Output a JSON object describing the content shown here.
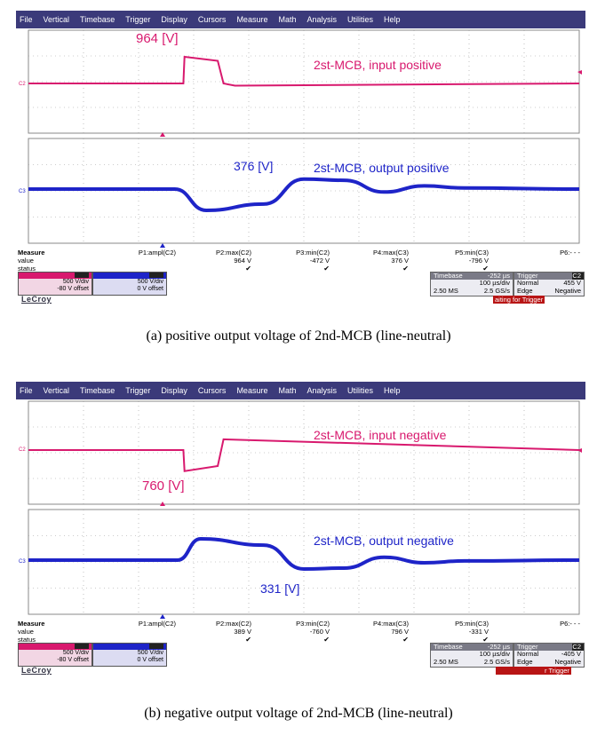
{
  "menu": [
    "File",
    "Vertical",
    "Timebase",
    "Trigger",
    "Display",
    "Cursors",
    "Measure",
    "Math",
    "Analysis",
    "Utilities",
    "Help"
  ],
  "colors": {
    "ch2": "#d8196e",
    "ch3": "#1e24c8",
    "menubar": "#3b3a7a",
    "grid": "#8a8a8a"
  },
  "panels": [
    {
      "caption": "(a)  positive  output  voltage  of  2nd-MCB  (line-neutral)",
      "annot_top_value": "964 [V]",
      "annot_top_label": "2st-MCB, input positive",
      "annot_bottom_value": "376 [V]",
      "annot_bottom_label": "2st-MCB, output positive",
      "ch_top_marker": "C2",
      "ch_bottom_marker": "C3",
      "measure": {
        "labels": [
          "Measure",
          "value",
          "status"
        ],
        "cols": [
          {
            "name": "P1:ampl(C2)",
            "value": ""
          },
          {
            "name": "P2:max(C2)",
            "value": "964 V"
          },
          {
            "name": "P3:min(C2)",
            "value": "-472 V"
          },
          {
            "name": "P4:max(C3)",
            "value": "376 V"
          },
          {
            "name": "P5:min(C3)",
            "value": "-796 V"
          },
          {
            "name": "P6:- - -",
            "value": ""
          }
        ]
      },
      "ch2_box": {
        "vdiv": "500 V/div",
        "offset": "-80 V offset"
      },
      "ch3_box": {
        "vdiv": "500 V/div",
        "offset": "0 V offset"
      },
      "timebase": {
        "title": "Timebase",
        "delay": "-252 µs",
        "tdiv": "100 µs/div",
        "samples": "2.50 MS",
        "rate": "2.5 GS/s"
      },
      "trigger": {
        "title": "Trigger",
        "ch": "C2",
        "mode": "Normal",
        "level": "455 V",
        "type": "Edge",
        "slope": "Negative"
      },
      "logo": "LeCroy",
      "status_text": "aiting for Trigger",
      "chart_data": {
        "type": "line",
        "x_unit": "µs",
        "series": [
          {
            "name": "2st-MCB, input positive",
            "channel": "C2",
            "x": [
              -460,
              -190,
              -188,
              -130,
              -120,
              -100,
              500
            ],
            "y": [
              0,
              0,
              964,
              820,
              0,
              -80,
              0
            ]
          },
          {
            "name": "2st-MCB, output positive",
            "channel": "C3",
            "x": [
              -460,
              -205,
              -150,
              -50,
              20,
              90,
              160,
              230,
              300,
              500
            ],
            "y": [
              0,
              0,
              -796,
              -560,
              376,
              330,
              -110,
              120,
              40,
              0
            ]
          }
        ]
      }
    },
    {
      "caption": "(b)  negative  output  voltage  of  2nd-MCB  (line-neutral)",
      "annot_top_value": "760 [V]",
      "annot_top_label": "2st-MCB, input negative",
      "annot_bottom_value": "331 [V]",
      "annot_bottom_label": "2st-MCB, output negative",
      "ch_top_marker": "C2",
      "ch_bottom_marker": "C3",
      "measure": {
        "labels": [
          "Measure",
          "value",
          "status"
        ],
        "cols": [
          {
            "name": "P1:ampl(C2)",
            "value": ""
          },
          {
            "name": "P2:max(C2)",
            "value": "389 V"
          },
          {
            "name": "P3:min(C2)",
            "value": "-760 V"
          },
          {
            "name": "P4:max(C3)",
            "value": "796 V"
          },
          {
            "name": "P5:min(C3)",
            "value": "-331 V"
          },
          {
            "name": "P6:- - -",
            "value": ""
          }
        ]
      },
      "ch2_box": {
        "vdiv": "500 V/div",
        "offset": "-80 V offset"
      },
      "ch3_box": {
        "vdiv": "500 V/div",
        "offset": "0 V offset"
      },
      "timebase": {
        "title": "Timebase",
        "delay": "-252 µs",
        "tdiv": "100 µs/div",
        "samples": "2.50 MS",
        "rate": "2.5 GS/s"
      },
      "trigger": {
        "title": "Trigger",
        "ch": "C2",
        "mode": "Normal",
        "level": "-405 V",
        "type": "Edge",
        "slope": "Negative"
      },
      "logo": "LeCroy",
      "status_text": "r Trigger",
      "chart_data": {
        "type": "line",
        "x_unit": "µs",
        "series": [
          {
            "name": "2st-MCB, input negative",
            "channel": "C2",
            "x": [
              -460,
              -190,
              -188,
              -130,
              -120,
              500
            ],
            "y": [
              0,
              0,
              -760,
              -580,
              389,
              0
            ]
          },
          {
            "name": "2st-MCB, output negative",
            "channel": "C3",
            "x": [
              -460,
              -200,
              -160,
              -50,
              20,
              90,
              160,
              230,
              300,
              500
            ],
            "y": [
              0,
              0,
              796,
              560,
              -331,
              -300,
              110,
              -100,
              -30,
              0
            ]
          }
        ]
      }
    }
  ]
}
